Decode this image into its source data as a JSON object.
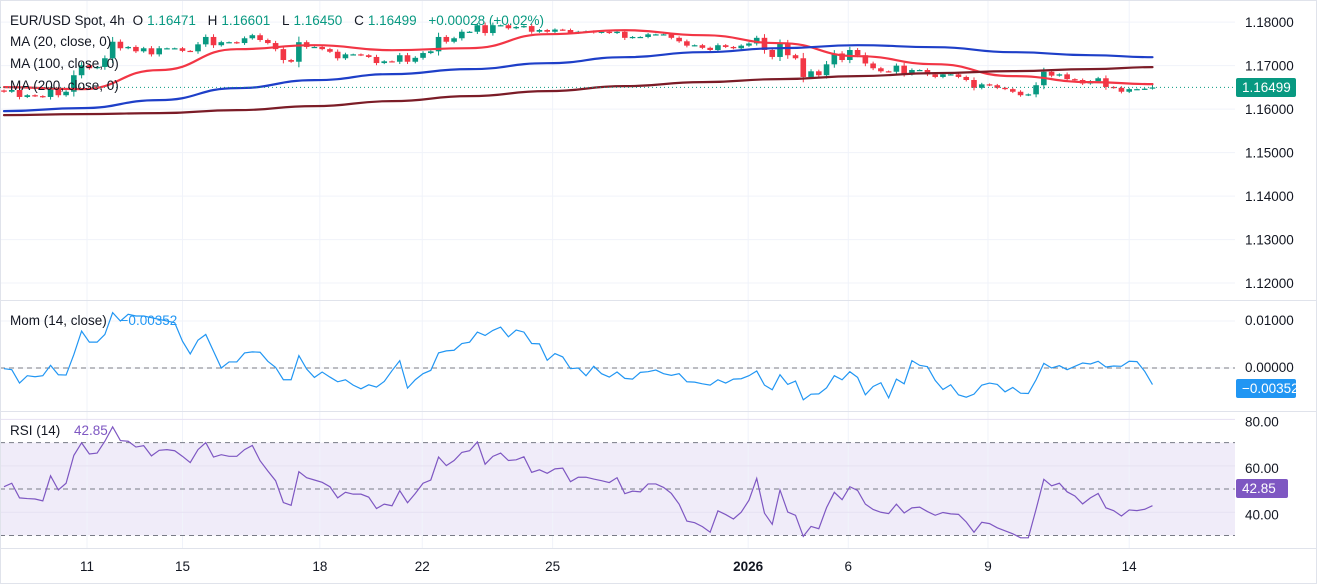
{
  "header": {
    "symbol": "EUR/USD Spot, 4h",
    "o_label": "O",
    "open": "1.16471",
    "h_label": "H",
    "high": "1.16601",
    "l_label": "L",
    "low": "1.16450",
    "c_label": "C",
    "close": "1.16499",
    "change": "+0.00028 (+0.02%)"
  },
  "legends": {
    "ma20": "MA (20, close, 0)",
    "ma100": "MA (100, close, 0)",
    "ma200": "MA (200, close, 0)",
    "mom": "Mom (14, close)",
    "mom_value": "−0.00352",
    "rsi": "RSI (14)",
    "rsi_value": "42.85"
  },
  "badges": {
    "price": "1.16499",
    "mom": "−0.00352",
    "rsi": "42.85"
  },
  "colors": {
    "up": "#089981",
    "down": "#f23645",
    "ma20": "#f23645",
    "ma100": "#1e3fc8",
    "ma200": "#7b1c27",
    "mom": "#2196f3",
    "rsi": "#7e57c2",
    "rsi_band": "#f0ecf9",
    "grid": "#f0f3fa",
    "separator": "#e0e3eb"
  },
  "x_labels": [
    "11",
    "15",
    "18",
    "22",
    "25",
    "2026",
    "6",
    "9",
    "14"
  ],
  "chart_data": [
    {
      "type": "candlestick",
      "ylim": [
        1.1161,
        1.1851
      ],
      "yticks": [
        "1.18000",
        "1.17000",
        "1.16000",
        "1.15000",
        "1.14000",
        "1.13000",
        "1.12000"
      ],
      "grid": true,
      "last_bar": {
        "open": 1.16471,
        "high": 1.16601,
        "low": 1.1645,
        "close": 1.16499
      },
      "closes": [
        1.164,
        1.1644,
        1.1628,
        1.1632,
        1.163,
        1.1628,
        1.1646,
        1.1632,
        1.164,
        1.1678,
        1.1701,
        1.1694,
        1.1697,
        1.1717,
        1.1755,
        1.174,
        1.1743,
        1.1733,
        1.174,
        1.1726,
        1.174,
        1.174,
        1.174,
        1.1734,
        1.1733,
        1.1749,
        1.1766,
        1.1747,
        1.1754,
        1.1754,
        1.1752,
        1.1763,
        1.177,
        1.1759,
        1.1752,
        1.1738,
        1.1713,
        1.1709,
        1.1754,
        1.1743,
        1.1743,
        1.1738,
        1.1732,
        1.1717,
        1.1726,
        1.1726,
        1.1724,
        1.172,
        1.1706,
        1.171,
        1.1709,
        1.1724,
        1.1709,
        1.1718,
        1.1729,
        1.1733,
        1.1766,
        1.1755,
        1.1763,
        1.1778,
        1.1778,
        1.1793,
        1.1775,
        1.1793,
        1.1793,
        1.1786,
        1.1789,
        1.1791,
        1.1778,
        1.1782,
        1.1778,
        1.1783,
        1.1782,
        1.1775,
        1.1778,
        1.1779,
        1.1776,
        1.1778,
        1.1775,
        1.1778,
        1.1764,
        1.1766,
        1.1766,
        1.1772,
        1.1772,
        1.1772,
        1.1764,
        1.1756,
        1.1746,
        1.1747,
        1.1741,
        1.1736,
        1.1747,
        1.1743,
        1.174,
        1.1746,
        1.1751,
        1.1764,
        1.1736,
        1.172,
        1.1751,
        1.1724,
        1.1717,
        1.1674,
        1.1687,
        1.1678,
        1.1703,
        1.1728,
        1.1713,
        1.1736,
        1.1724,
        1.1705,
        1.1694,
        1.1687,
        1.1686,
        1.17,
        1.1681,
        1.169,
        1.169,
        1.168,
        1.1674,
        1.168,
        1.168,
        1.1674,
        1.1667,
        1.1649,
        1.1657,
        1.1655,
        1.1649,
        1.1646,
        1.164,
        1.1632,
        1.1634,
        1.1655,
        1.1686,
        1.1677,
        1.168,
        1.1669,
        1.1667,
        1.1659,
        1.1664,
        1.1671,
        1.1651,
        1.1649,
        1.164,
        1.1646,
        1.1646,
        1.1647,
        1.16499
      ],
      "moving_averages": [
        {
          "name": "MA (20, close, 0)",
          "values": [
            1.16506,
            1.1646,
            1.16897,
            1.17379,
            1.17471,
            1.17356,
            1.17402,
            1.17724,
            1.17816,
            1.17701,
            1.17517,
            1.17218,
            1.17034,
            1.16759,
            1.16621,
            1.16575
          ]
        },
        {
          "name": "MA (100, close, 0)",
          "values": [
            1.15954,
            1.16023,
            1.16207,
            1.16483,
            1.16667,
            1.16805,
            1.1692,
            1.17057,
            1.17195,
            1.1731,
            1.17402,
            1.17471,
            1.17425,
            1.1731,
            1.17241,
            1.17195
          ]
        },
        {
          "name": "MA (200, close, 0)",
          "values": [
            1.15862,
            1.15885,
            1.15908,
            1.15977,
            1.16069,
            1.16184,
            1.16299,
            1.16414,
            1.16529,
            1.16621,
            1.1669,
            1.16759,
            1.16828,
            1.16874,
            1.1692,
            1.16966
          ]
        }
      ]
    },
    {
      "type": "line",
      "name": "Mom (14, close)",
      "ylim": [
        -0.00915,
        0.01426
      ],
      "yticks": [
        "0.01000",
        "0.00000"
      ],
      "reference_line": 0,
      "values": [
        -0.00014,
        -0.00036,
        -0.00321,
        -0.00164,
        -0.00186,
        -0.00164,
        0.00057,
        -0.00143,
        -0.0015,
        0.00286,
        0.00785,
        0.0055,
        0.0055,
        0.00714,
        0.01178,
        0.01,
        0.01143,
        0.01107,
        0.01107,
        0.01071,
        0.01035,
        0.01,
        0.00964,
        0.00571,
        0.003,
        0.00593,
        0.00714,
        0.00357,
        0.0,
        0.00129,
        0.00129,
        0.00321,
        0.00343,
        0.00336,
        0.00143,
        0.00014,
        -0.0025,
        -0.0025,
        0.00264,
        -0.00021,
        -0.002,
        -0.00086,
        -0.00193,
        -0.00293,
        -0.0025,
        -0.00364,
        -0.00443,
        -0.00357,
        -0.00407,
        -0.00286,
        -0.00057,
        0.00157,
        -0.00428,
        -0.0025,
        -0.00121,
        -0.0005,
        0.00321,
        0.00364,
        0.00378,
        0.00521,
        0.0055,
        0.00764,
        0.00693,
        0.008,
        0.00871,
        0.00664,
        0.00807,
        0.00764,
        0.00521,
        0.00514,
        0.00164,
        0.00307,
        0.00236,
        -0.00014,
        0.0,
        -0.00164,
        0.00036,
        -0.00121,
        -0.00193,
        -0.00086,
        -0.00221,
        -0.00236,
        -0.00093,
        -0.00079,
        -0.00043,
        -0.00121,
        -0.00157,
        -0.00121,
        -0.00293,
        -0.003,
        -0.00336,
        -0.00364,
        -0.0025,
        -0.00321,
        -0.00236,
        -0.00228,
        -0.00164,
        -0.00064,
        -0.00364,
        -0.00464,
        -0.00143,
        -0.0035,
        -0.00278,
        -0.00678,
        -0.00557,
        -0.0055,
        -0.00421,
        -0.00164,
        -0.0025,
        -0.00079,
        -0.002,
        -0.00571,
        -0.00393,
        -0.00314,
        -0.00635,
        -0.00236,
        -0.00336,
        0.00157,
        0.00057,
        0.00029,
        -0.00264,
        -0.00457,
        -0.00357,
        -0.00571,
        -0.00621,
        -0.00557,
        -0.00364,
        -0.00321,
        -0.0035,
        -0.00507,
        -0.00414,
        -0.00536,
        -0.00543,
        -0.0025,
        0.001,
        0.0,
        0.0005,
        -0.00036,
        0.00036,
        0.00107,
        0.00086,
        0.00143,
        0.00021,
        0.00043,
        0.00036,
        0.00143,
        0.00136,
        -0.00071,
        -0.00352
      ]
    },
    {
      "type": "line",
      "name": "RSI (14)",
      "ylim": [
        24.6,
        83.2
      ],
      "yticks": [
        "80.00",
        "60.00",
        "40.00"
      ],
      "bands": [
        70,
        50,
        30
      ],
      "values": [
        51.0,
        52.5,
        46.2,
        45.9,
        45.7,
        44.9,
        55.7,
        49.6,
        52.5,
        64.5,
        69.9,
        65.1,
        65.5,
        70.6,
        76.8,
        70.9,
        70.6,
        68.1,
        68.7,
        64.3,
        66.7,
        67.0,
        66.5,
        64.1,
        61.4,
        67.0,
        70.0,
        63.8,
        64.8,
        64.1,
        64.1,
        67.0,
        68.8,
        62.2,
        57.8,
        53.6,
        44.2,
        43.0,
        57.5,
        54.9,
        53.9,
        52.9,
        51.0,
        46.2,
        48.6,
        47.8,
        47.8,
        46.5,
        41.6,
        43.5,
        42.8,
        49.3,
        44.1,
        48.1,
        52.5,
        53.9,
        63.8,
        60.1,
        62.3,
        65.8,
        66.5,
        70.3,
        60.7,
        64.1,
        65.5,
        62.3,
        62.6,
        63.9,
        57.2,
        58.3,
        56.8,
        58.7,
        59.0,
        53.2,
        55.1,
        55.1,
        54.3,
        53.6,
        52.8,
        54.9,
        48.0,
        49.1,
        48.8,
        52.2,
        52.2,
        50.7,
        48.1,
        43.5,
        36.2,
        35.5,
        33.8,
        31.4,
        40.6,
        39.0,
        37.1,
        40.0,
        45.2,
        54.6,
        39.6,
        34.8,
        49.6,
        40.1,
        38.7,
        29.6,
        33.9,
        32.9,
        42.0,
        48.6,
        45.4,
        51.0,
        49.4,
        43.5,
        41.2,
        40.0,
        39.4,
        43.5,
        39.7,
        41.9,
        42.2,
        40.3,
        38.7,
        39.9,
        39.3,
        39.1,
        35.8,
        31.4,
        35.7,
        35.1,
        33.3,
        32.0,
        30.7,
        29.0,
        29.0,
        41.3,
        54.2,
        51.4,
        52.5,
        48.8,
        47.0,
        43.6,
        46.2,
        48.1,
        41.9,
        40.7,
        38.4,
        41.0,
        40.7,
        41.3,
        42.85
      ]
    }
  ]
}
